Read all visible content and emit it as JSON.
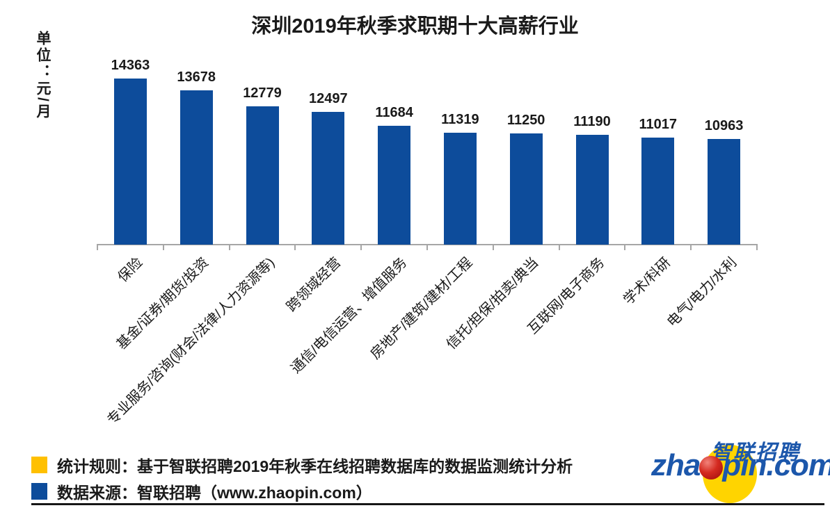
{
  "title": "深圳2019年秋季求职期十大高薪行业",
  "y_axis": {
    "unit_label": "单位：元/月"
  },
  "chart_data": {
    "type": "bar",
    "title": "深圳2019年秋季求职期十大高薪行业",
    "ylabel": "单位：元/月",
    "categories": [
      "保险",
      "基金/证券/期货/投资",
      "专业服务/咨询(财会/法律/人力资源等)",
      "跨领域经营",
      "通信/电信运营、增值服务",
      "房地产/建筑/建材/工程",
      "信托/担保/拍卖/典当",
      "互联网/电子商务",
      "学术/科研",
      "电气/电力/水利"
    ],
    "values": [
      14363,
      13678,
      12779,
      12497,
      11684,
      11319,
      11250,
      11190,
      11017,
      10963
    ],
    "data_labels_visible": true,
    "bar_color": "#0d4c9b",
    "axis_color": "#a6a6a6",
    "baseline_value": 5000,
    "grid": false,
    "legend_position": "none",
    "category_label_rotation_deg": -45
  },
  "footer": {
    "legend_rows": [
      {
        "swatch_color": "#ffc000",
        "text": "统计规则：基于智联招聘2019年秋季在线招聘数据库的数据监测统计分析"
      },
      {
        "swatch_color": "#0d4c9b",
        "text": "数据来源：智联招聘（www.zhaopin.com）"
      }
    ]
  },
  "logo": {
    "cn_text": "智联招聘",
    "en_text_left": "zha",
    "en_text_right": "pin.com",
    "colors": {
      "blue": "#1c57ab",
      "yellow": "#ffd400",
      "red": "#c01818"
    }
  }
}
